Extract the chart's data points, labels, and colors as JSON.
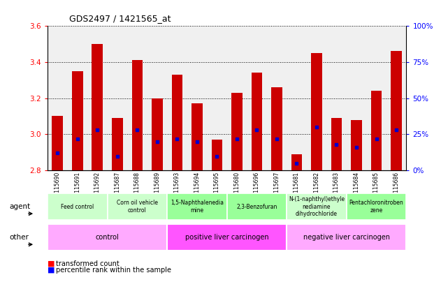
{
  "title": "GDS2497 / 1421565_at",
  "samples": [
    "GSM115690",
    "GSM115691",
    "GSM115692",
    "GSM115687",
    "GSM115688",
    "GSM115689",
    "GSM115693",
    "GSM115694",
    "GSM115695",
    "GSM115680",
    "GSM115696",
    "GSM115697",
    "GSM115681",
    "GSM115682",
    "GSM115683",
    "GSM115684",
    "GSM115685",
    "GSM115686"
  ],
  "transformed_count": [
    3.1,
    3.35,
    3.5,
    3.09,
    3.41,
    3.2,
    3.33,
    3.17,
    2.97,
    3.23,
    3.34,
    3.26,
    2.89,
    3.45,
    3.09,
    3.08,
    3.24,
    3.46
  ],
  "percentile_rank": [
    12,
    22,
    28,
    10,
    28,
    20,
    22,
    20,
    10,
    22,
    28,
    22,
    5,
    30,
    18,
    16,
    22,
    28
  ],
  "ymin": 2.8,
  "ymax": 3.6,
  "bar_color": "#CC0000",
  "blue_color": "#0000CC",
  "agents": [
    {
      "label": "Feed control",
      "start": 0,
      "end": 3,
      "color": "#CCFFCC"
    },
    {
      "label": "Corn oil vehicle\ncontrol",
      "start": 3,
      "end": 6,
      "color": "#CCFFCC"
    },
    {
      "label": "1,5-Naphthalenedia\nmine",
      "start": 6,
      "end": 9,
      "color": "#99FF99"
    },
    {
      "label": "2,3-Benzofuran",
      "start": 9,
      "end": 12,
      "color": "#99FF99"
    },
    {
      "label": "N-(1-naphthyl)ethyle\nnediamine\ndihydrochloride",
      "start": 12,
      "end": 15,
      "color": "#CCFFCC"
    },
    {
      "label": "Pentachloronitroben\nzene",
      "start": 15,
      "end": 18,
      "color": "#99FF99"
    }
  ],
  "others": [
    {
      "label": "control",
      "start": 0,
      "end": 6,
      "color": "#FFAAFF"
    },
    {
      "label": "positive liver carcinogen",
      "start": 6,
      "end": 12,
      "color": "#FF55FF"
    },
    {
      "label": "negative liver carcinogen",
      "start": 12,
      "end": 18,
      "color": "#FFAAFF"
    }
  ],
  "yticks": [
    2.8,
    3.0,
    3.2,
    3.4,
    3.6
  ],
  "right_yticks": [
    0,
    25,
    50,
    75,
    100
  ],
  "right_ytick_labels": [
    "0%",
    "25%",
    "50%",
    "75%",
    "100%"
  ],
  "percentile_scale_max": 100,
  "bar_width": 0.55,
  "plot_bg": "#F0F0F0"
}
